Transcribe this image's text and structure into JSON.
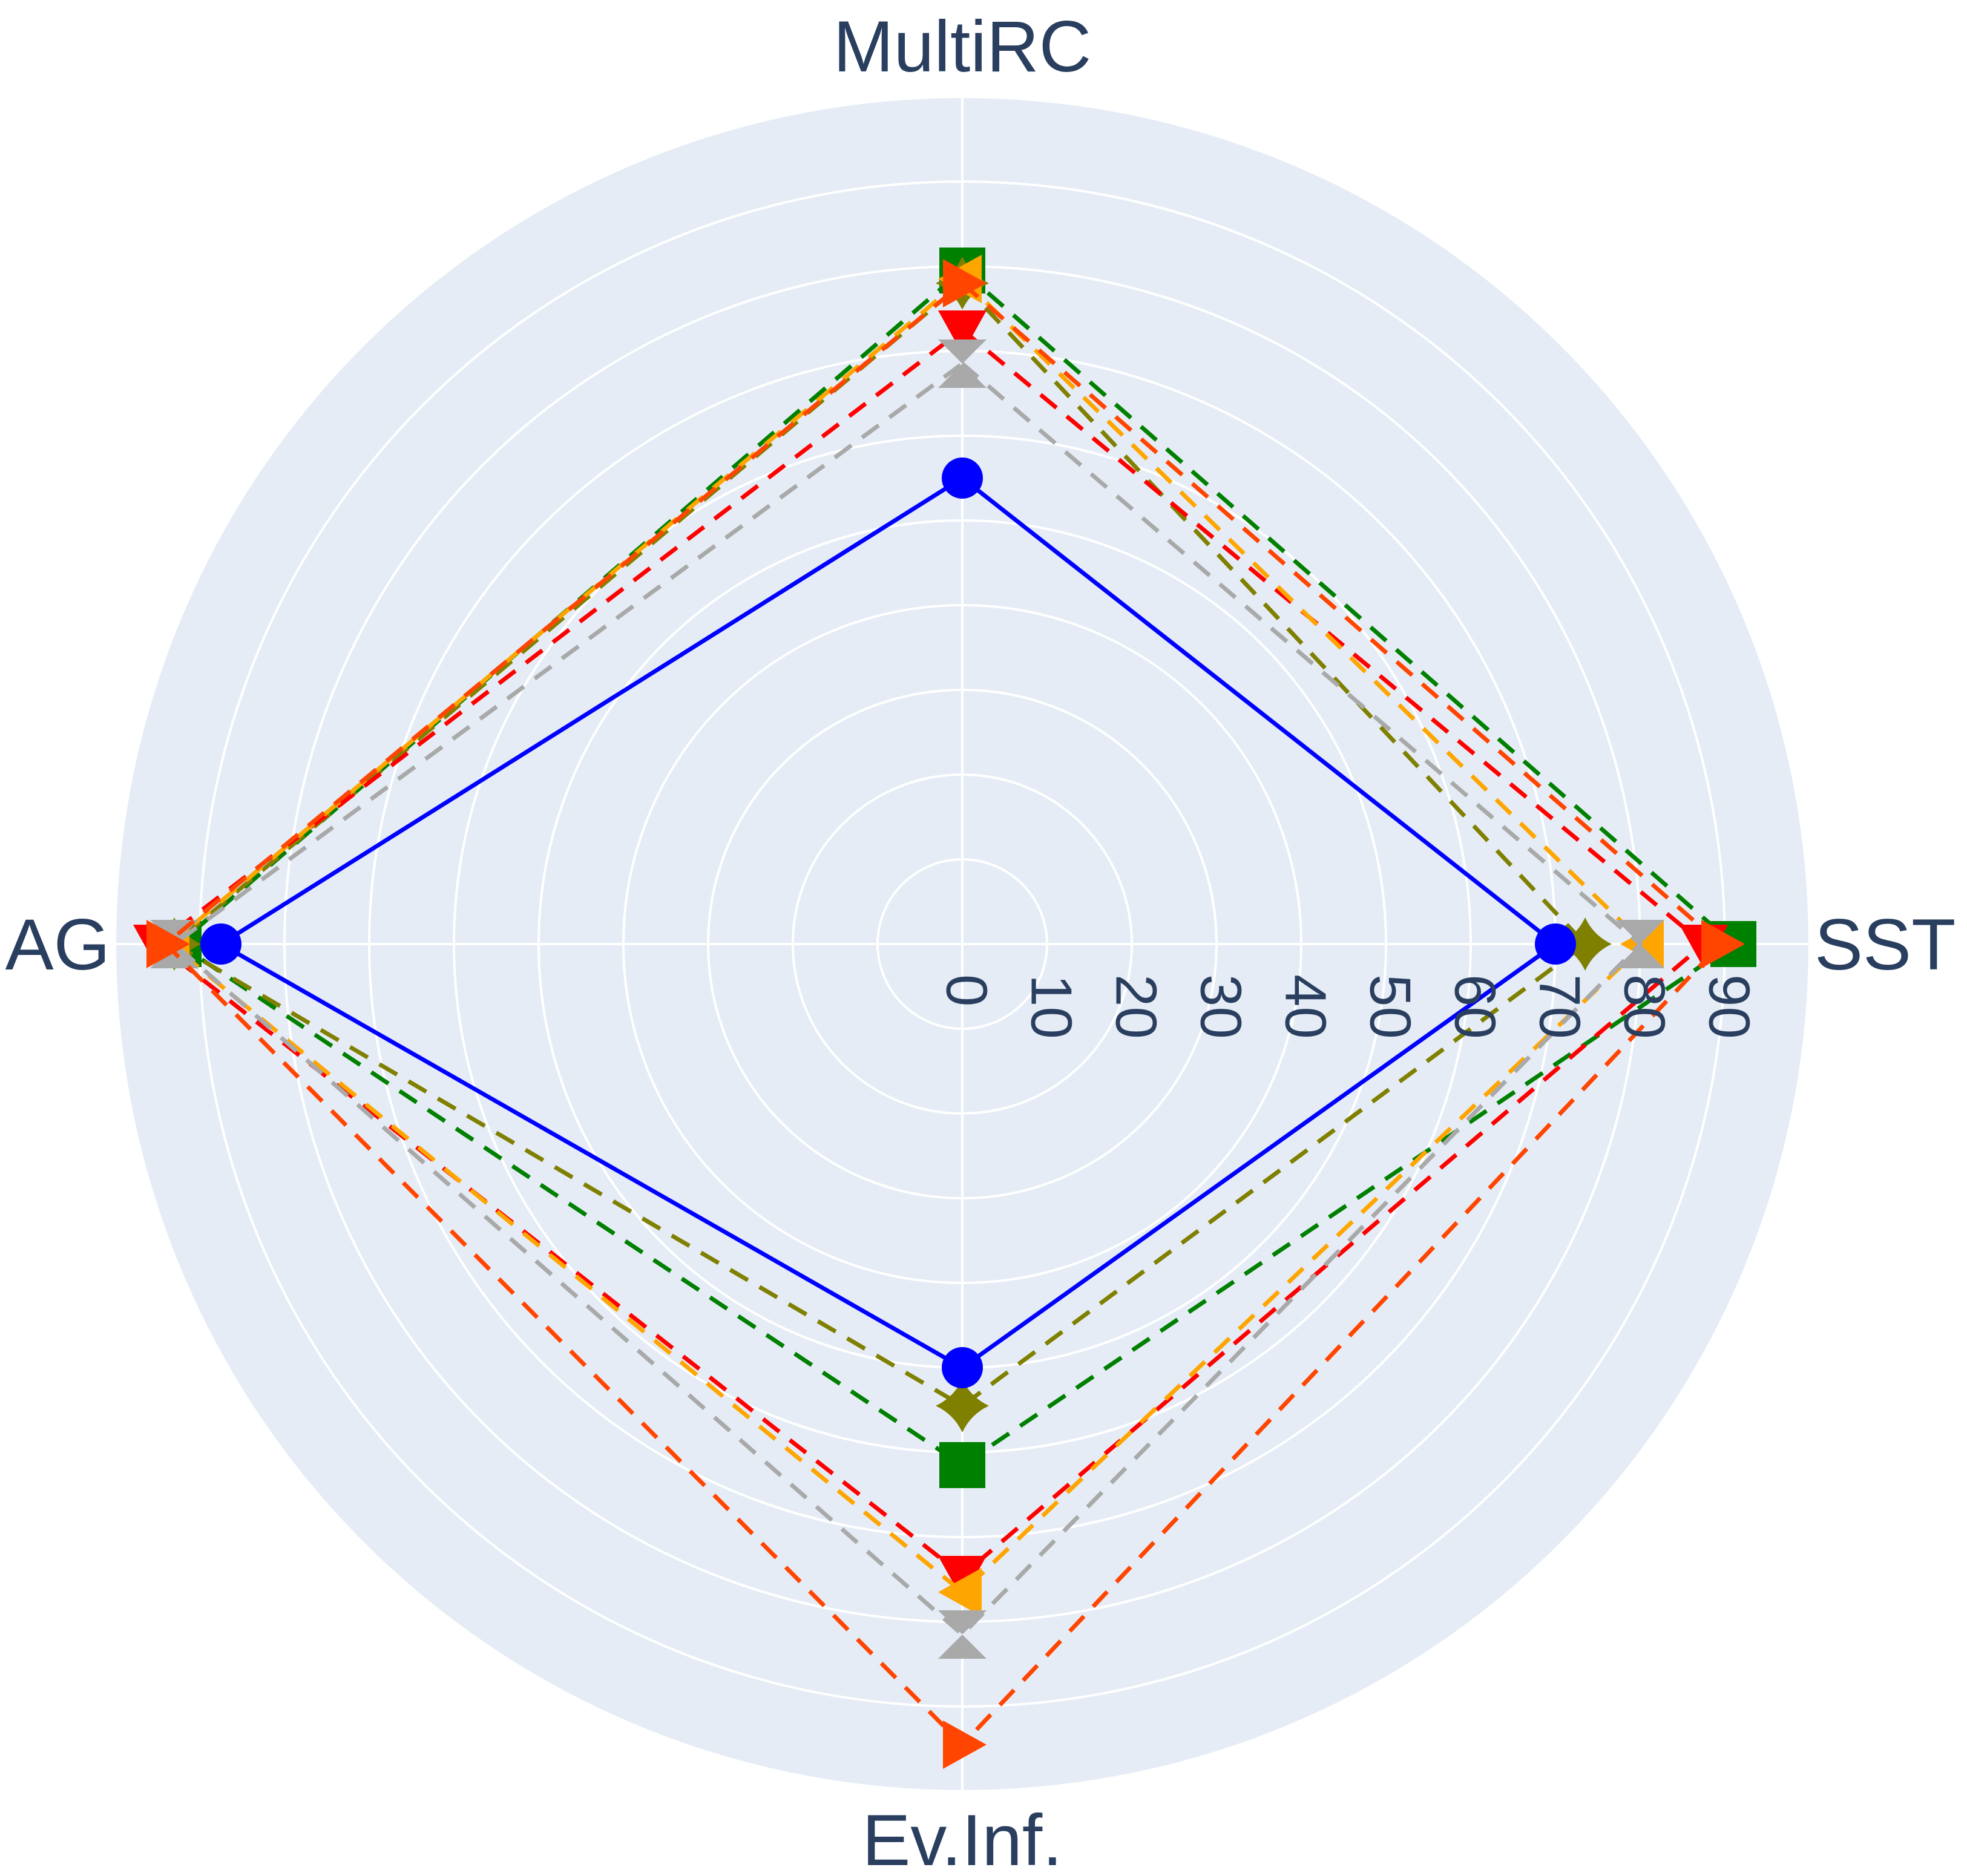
{
  "chart_data": {
    "type": "radar",
    "axes": [
      "MultiRC",
      "SST",
      "Ev.Inf.",
      "AG"
    ],
    "radial_ticks": [
      "0",
      "10",
      "20",
      "30",
      "40",
      "50",
      "60",
      "70",
      "80",
      "90"
    ],
    "rmax": 100,
    "grid": true,
    "legend": "none",
    "series": [
      {
        "values": [
          55,
          70,
          50,
          87.5
        ],
        "color": "#0000ff",
        "dash": "solid",
        "marker": "circle"
      },
      {
        "values": [
          79.5,
          91,
          61.5,
          92.5
        ],
        "color": "#008000",
        "dash": "dashed",
        "marker": "square"
      },
      {
        "values": [
          78,
          73.5,
          54.5,
          93
        ],
        "color": "#808000",
        "dash": "dashed",
        "marker": "star4"
      },
      {
        "values": [
          72.5,
          87.5,
          74.5,
          95
        ],
        "color": "#ff0000",
        "dash": "dashed",
        "marker": "triangle-down"
      },
      {
        "values": [
          78.5,
          80.5,
          76.5,
          93.5
        ],
        "color": "#ffa500",
        "dash": "dashed",
        "marker": "triangle-left"
      },
      {
        "values": [
          68.5,
          80,
          81.5,
          93
        ],
        "color": "#a9a9a9",
        "dash": "dashed",
        "marker": "hourglass"
      },
      {
        "values": [
          78,
          89.5,
          94.5,
          94
        ],
        "color": "#ff4500",
        "dash": "dashed",
        "marker": "triangle-right"
      }
    ]
  }
}
